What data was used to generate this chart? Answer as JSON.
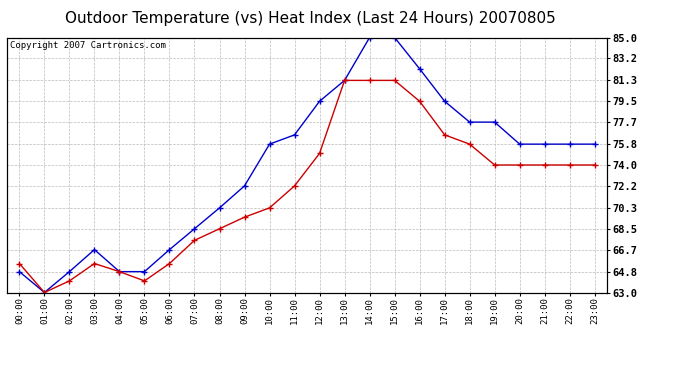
{
  "title": "Outdoor Temperature (vs) Heat Index (Last 24 Hours) 20070805",
  "copyright": "Copyright 2007 Cartronics.com",
  "hours": [
    "00:00",
    "01:00",
    "02:00",
    "03:00",
    "04:00",
    "05:00",
    "06:00",
    "07:00",
    "08:00",
    "09:00",
    "10:00",
    "11:00",
    "12:00",
    "13:00",
    "14:00",
    "15:00",
    "16:00",
    "17:00",
    "18:00",
    "19:00",
    "20:00",
    "21:00",
    "22:00",
    "23:00"
  ],
  "blue_temp": [
    64.8,
    63.0,
    64.8,
    66.7,
    64.8,
    64.8,
    66.7,
    68.5,
    70.3,
    72.2,
    75.8,
    76.6,
    79.5,
    81.3,
    85.0,
    85.0,
    82.3,
    79.5,
    77.7,
    77.7,
    75.8,
    75.8,
    75.8,
    75.8
  ],
  "red_heat": [
    65.5,
    63.0,
    64.0,
    65.5,
    64.8,
    64.0,
    65.5,
    67.5,
    68.5,
    69.5,
    70.3,
    72.2,
    75.0,
    81.3,
    81.3,
    81.3,
    79.5,
    76.6,
    75.8,
    74.0,
    74.0,
    74.0,
    74.0,
    74.0
  ],
  "blue_color": "#0000cc",
  "red_color": "#cc0000",
  "bg_color": "#ffffff",
  "plot_bg": "#ffffff",
  "grid_color": "#bbbbbb",
  "ylim_min": 63.0,
  "ylim_max": 85.0,
  "yticks": [
    63.0,
    64.8,
    66.7,
    68.5,
    70.3,
    72.2,
    74.0,
    75.8,
    77.7,
    79.5,
    81.3,
    83.2,
    85.0
  ],
  "title_fontsize": 11,
  "copyright_fontsize": 6.5
}
